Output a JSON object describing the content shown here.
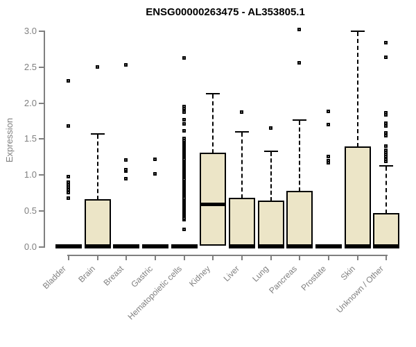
{
  "chart_data": {
    "type": "boxplot",
    "title": "ENSG00000263475 - AL353805.1",
    "ylabel": "Expression",
    "xlabel": "",
    "ylim": [
      0.0,
      3.0
    ],
    "ytick_labels": [
      "0.0",
      "0.5",
      "1.0",
      "1.5",
      "2.0",
      "2.5",
      "3.0"
    ],
    "grid": false,
    "legend": false,
    "colors": {
      "box_fill": "#ECE5C7",
      "box_border": "#000000",
      "whisker": "#000000",
      "axis": "#7F7F7F",
      "title": "#000000"
    },
    "categories": [
      "Bladder",
      "Brain",
      "Breast",
      "Gastric",
      "Hematopoietic cells",
      "Kidney",
      "Liver",
      "Lung",
      "Pancreas",
      "Prostate",
      "Skin",
      "Unknown / Other"
    ],
    "series": [
      {
        "category": "Bladder",
        "q1": 0,
        "median": 0,
        "q3": 0,
        "whisker_low": 0,
        "whisker_high": 0,
        "outliers": [
          0.68,
          0.75,
          0.79,
          0.83,
          0.86,
          0.9,
          0.97,
          1.68,
          2.31
        ]
      },
      {
        "category": "Brain",
        "q1": 0,
        "median": 0,
        "q3": 0.66,
        "whisker_low": 0,
        "whisker_high": 1.57,
        "outliers": [
          2.5
        ]
      },
      {
        "category": "Breast",
        "q1": 0,
        "median": 0,
        "q3": 0,
        "whisker_low": 0,
        "whisker_high": 0,
        "outliers": [
          0.95,
          1.05,
          1.07,
          1.21,
          2.53
        ]
      },
      {
        "category": "Gastric",
        "q1": 0,
        "median": 0,
        "q3": 0,
        "whisker_low": 0,
        "whisker_high": 0,
        "outliers": [
          1.01,
          1.22
        ]
      },
      {
        "category": "Hematopoietic cells",
        "q1": 0,
        "median": 0,
        "q3": 0,
        "whisker_low": 0,
        "whisker_high": 0,
        "outliers": [
          0.24,
          1.61,
          1.71,
          1.77,
          1.87,
          1.92,
          1.95,
          2.62
        ],
        "outlier_run": {
          "from": 0.38,
          "to": 1.5,
          "step": 0.02
        }
      },
      {
        "category": "Kidney",
        "q1": 0.03,
        "median": 0.6,
        "q3": 1.3,
        "whisker_low": 0.03,
        "whisker_high": 2.13,
        "outliers": []
      },
      {
        "category": "Liver",
        "q1": 0,
        "median": 0,
        "q3": 0.68,
        "whisker_low": 0,
        "whisker_high": 1.6,
        "outliers": [
          1.87
        ]
      },
      {
        "category": "Lung",
        "q1": 0,
        "median": 0,
        "q3": 0.64,
        "whisker_low": 0,
        "whisker_high": 1.33,
        "outliers": [
          1.65
        ]
      },
      {
        "category": "Pancreas",
        "q1": 0,
        "median": 0,
        "q3": 0.77,
        "whisker_low": 0,
        "whisker_high": 1.77,
        "outliers": [
          2.56,
          3.02
        ]
      },
      {
        "category": "Prostate",
        "q1": 0,
        "median": 0,
        "q3": 0,
        "whisker_low": 0,
        "whisker_high": 0,
        "outliers": [
          1.17,
          1.2,
          1.25,
          1.7,
          1.88
        ]
      },
      {
        "category": "Skin",
        "q1": 0,
        "median": 0,
        "q3": 1.39,
        "whisker_low": 0,
        "whisker_high": 3.0,
        "outliers": []
      },
      {
        "category": "Unknown / Other",
        "q1": 0,
        "median": 0,
        "q3": 0.46,
        "whisker_low": 0,
        "whisker_high": 1.13,
        "outliers": [
          1.19,
          1.22,
          1.25,
          1.28,
          1.31,
          1.34,
          1.4,
          1.54,
          1.58,
          1.68,
          1.72,
          1.83,
          1.86,
          2.63,
          2.84
        ]
      }
    ]
  }
}
